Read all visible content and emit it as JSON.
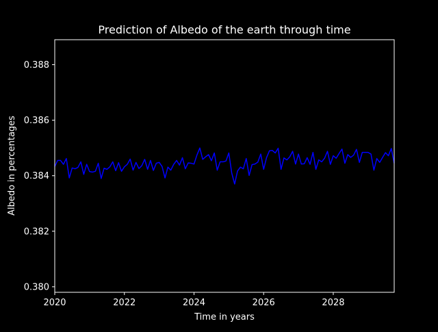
{
  "chart_data": {
    "type": "line",
    "title": "Prediction of Albedo of the earth through time",
    "xlabel": "Time in years",
    "ylabel": "Albedo in percentages",
    "xlim": [
      2020.0,
      2029.75
    ],
    "ylim": [
      0.3798,
      0.3889
    ],
    "xticks": [
      2020,
      2022,
      2024,
      2026,
      2028
    ],
    "xtick_labels": [
      "2020",
      "2022",
      "2024",
      "2026",
      "2028"
    ],
    "yticks": [
      0.38,
      0.382,
      0.384,
      0.386,
      0.388
    ],
    "ytick_labels": [
      "0.380",
      "0.382",
      "0.384",
      "0.386",
      "0.388"
    ],
    "grid": false,
    "background": "#000000",
    "axes_color": "#ffffff",
    "series": [
      {
        "color": "#0000ff",
        "x": [
          2020.0,
          2020.083,
          2020.167,
          2020.25,
          2020.333,
          2020.417,
          2020.5,
          2020.583,
          2020.667,
          2020.75,
          2020.833,
          2020.917,
          2021.0,
          2021.083,
          2021.167,
          2021.25,
          2021.333,
          2021.417,
          2021.5,
          2021.583,
          2021.667,
          2021.75,
          2021.833,
          2021.917,
          2022.0,
          2022.083,
          2022.167,
          2022.25,
          2022.333,
          2022.417,
          2022.5,
          2022.583,
          2022.667,
          2022.75,
          2022.833,
          2022.917,
          2023.0,
          2023.083,
          2023.167,
          2023.25,
          2023.333,
          2023.417,
          2023.5,
          2023.583,
          2023.667,
          2023.75,
          2023.833,
          2023.917,
          2024.0,
          2024.083,
          2024.167,
          2024.25,
          2024.333,
          2024.417,
          2024.5,
          2024.583,
          2024.667,
          2024.75,
          2024.833,
          2024.917,
          2025.0,
          2025.083,
          2025.167,
          2025.25,
          2025.333,
          2025.417,
          2025.5,
          2025.583,
          2025.667,
          2025.75,
          2025.833,
          2025.917,
          2026.0,
          2026.083,
          2026.167,
          2026.25,
          2026.333,
          2026.417,
          2026.5,
          2026.583,
          2026.667,
          2026.75,
          2026.833,
          2026.917,
          2027.0,
          2027.083,
          2027.167,
          2027.25,
          2027.333,
          2027.417,
          2027.5,
          2027.583,
          2027.667,
          2027.75,
          2027.833,
          2027.917,
          2028.0,
          2028.083,
          2028.167,
          2028.25,
          2028.333,
          2028.417,
          2028.5,
          2028.583,
          2028.667,
          2028.75,
          2028.833,
          2028.917,
          2029.0,
          2029.083,
          2029.167,
          2029.25,
          2029.333,
          2029.417,
          2029.5,
          2029.583,
          2029.667,
          2029.75
        ],
        "y": [
          0.38433,
          0.38455,
          0.38455,
          0.38441,
          0.38462,
          0.38392,
          0.38428,
          0.38425,
          0.3843,
          0.3845,
          0.38405,
          0.38441,
          0.38415,
          0.38413,
          0.38416,
          0.38445,
          0.3839,
          0.38427,
          0.38423,
          0.38432,
          0.3845,
          0.38418,
          0.38447,
          0.38416,
          0.38432,
          0.38441,
          0.3846,
          0.3842,
          0.38448,
          0.38426,
          0.38436,
          0.38459,
          0.38423,
          0.38455,
          0.38419,
          0.38445,
          0.38448,
          0.38433,
          0.38392,
          0.38431,
          0.3842,
          0.38441,
          0.38455,
          0.38438,
          0.38465,
          0.38425,
          0.38446,
          0.38445,
          0.38442,
          0.38474,
          0.385,
          0.38459,
          0.38468,
          0.38476,
          0.38454,
          0.38482,
          0.3842,
          0.3845,
          0.3845,
          0.38453,
          0.38482,
          0.3841,
          0.3837,
          0.38417,
          0.38431,
          0.38425,
          0.38462,
          0.38401,
          0.3844,
          0.38442,
          0.38449,
          0.38478,
          0.38423,
          0.38465,
          0.3849,
          0.38491,
          0.38482,
          0.38499,
          0.38423,
          0.38464,
          0.38457,
          0.38468,
          0.38488,
          0.38442,
          0.38478,
          0.38442,
          0.38443,
          0.38465,
          0.38441,
          0.38484,
          0.38423,
          0.38457,
          0.3845,
          0.38463,
          0.38488,
          0.38441,
          0.38472,
          0.38463,
          0.3848,
          0.38496,
          0.38445,
          0.38476,
          0.38466,
          0.38474,
          0.38495,
          0.38448,
          0.38484,
          0.38484,
          0.38484,
          0.38478,
          0.3842,
          0.38462,
          0.38448,
          0.38466,
          0.38483,
          0.38472,
          0.38498,
          0.38445
        ]
      }
    ]
  }
}
